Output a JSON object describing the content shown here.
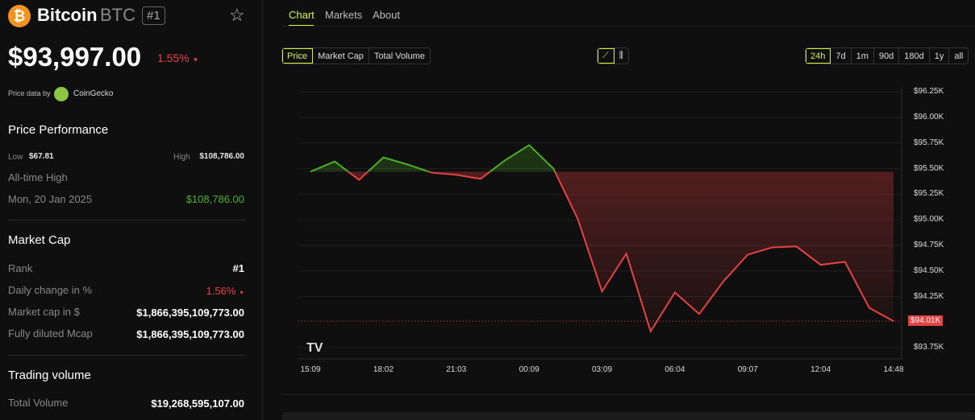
{
  "coin": {
    "name": "Bitcoin",
    "symbol": "BTC",
    "rank_badge": "#1",
    "price": "$93,997.00",
    "change": "1.55%",
    "change_dir": "down",
    "price_data_by": "Price data by",
    "provider": "CoinGecko"
  },
  "performance": {
    "title": "Price Performance",
    "low_label": "Low",
    "low": "$67.81",
    "high_label": "High",
    "high": "$108,786.00",
    "ath_label": "All-time High",
    "ath_date": "Mon, 20 Jan 2025",
    "ath_value": "$108,786.00"
  },
  "market_cap": {
    "title": "Market Cap",
    "rows": [
      {
        "label": "Rank",
        "value": "#1"
      },
      {
        "label": "Daily change in %",
        "value": "1.56%"
      },
      {
        "label": "Market cap in $",
        "value": "$1,866,395,109,773.00"
      },
      {
        "label": "Fully diluted Mcap",
        "value": "$1,866,395,109,773.00"
      }
    ]
  },
  "volume": {
    "title": "Trading volume",
    "label": "Total Volume",
    "value": "$19,268,595,107.00"
  },
  "tabs": [
    "Chart",
    "Markets",
    "About"
  ],
  "metric_buttons": [
    "Price",
    "Market Cap",
    "Total Volume"
  ],
  "chart_type_icons": [
    "line-chart-icon",
    "candlestick-icon"
  ],
  "range_buttons": [
    "24h",
    "7d",
    "1m",
    "90d",
    "180d",
    "1y",
    "all"
  ],
  "colors": {
    "accent": "#d4f53c",
    "up": "#4caf25",
    "down": "#e84142"
  },
  "chart_data": {
    "type": "line",
    "x": [
      "15:09",
      "",
      "",
      "18:02",
      "",
      "",
      "21:03",
      "",
      "",
      "00:09",
      "",
      "",
      "03:09",
      "",
      "",
      "06:04",
      "",
      "",
      "09:07",
      "",
      "",
      "12:04",
      "",
      "",
      "14:48"
    ],
    "x_ticks": [
      "15:09",
      "18:02",
      "21:03",
      "00:09",
      "03:09",
      "06:04",
      "09:07",
      "12:04",
      "14:48"
    ],
    "values": [
      95.47,
      95.57,
      95.39,
      95.61,
      95.54,
      95.46,
      95.44,
      95.4,
      95.58,
      95.73,
      95.5,
      95.01,
      94.3,
      94.67,
      93.91,
      94.29,
      94.08,
      94.4,
      94.66,
      94.73,
      94.74,
      94.56,
      94.59,
      94.14,
      94.01
    ],
    "y_unit": "K USD",
    "y_ticks": [
      "$96.25K",
      "$96.00K",
      "$95.75K",
      "$95.50K",
      "$95.25K",
      "$95.00K",
      "$94.75K",
      "$94.50K",
      "$94.25K",
      "$94.01K",
      "$93.75K"
    ],
    "current_label": "$94.01K",
    "ylim": [
      93.65,
      96.27
    ],
    "grid": true
  }
}
